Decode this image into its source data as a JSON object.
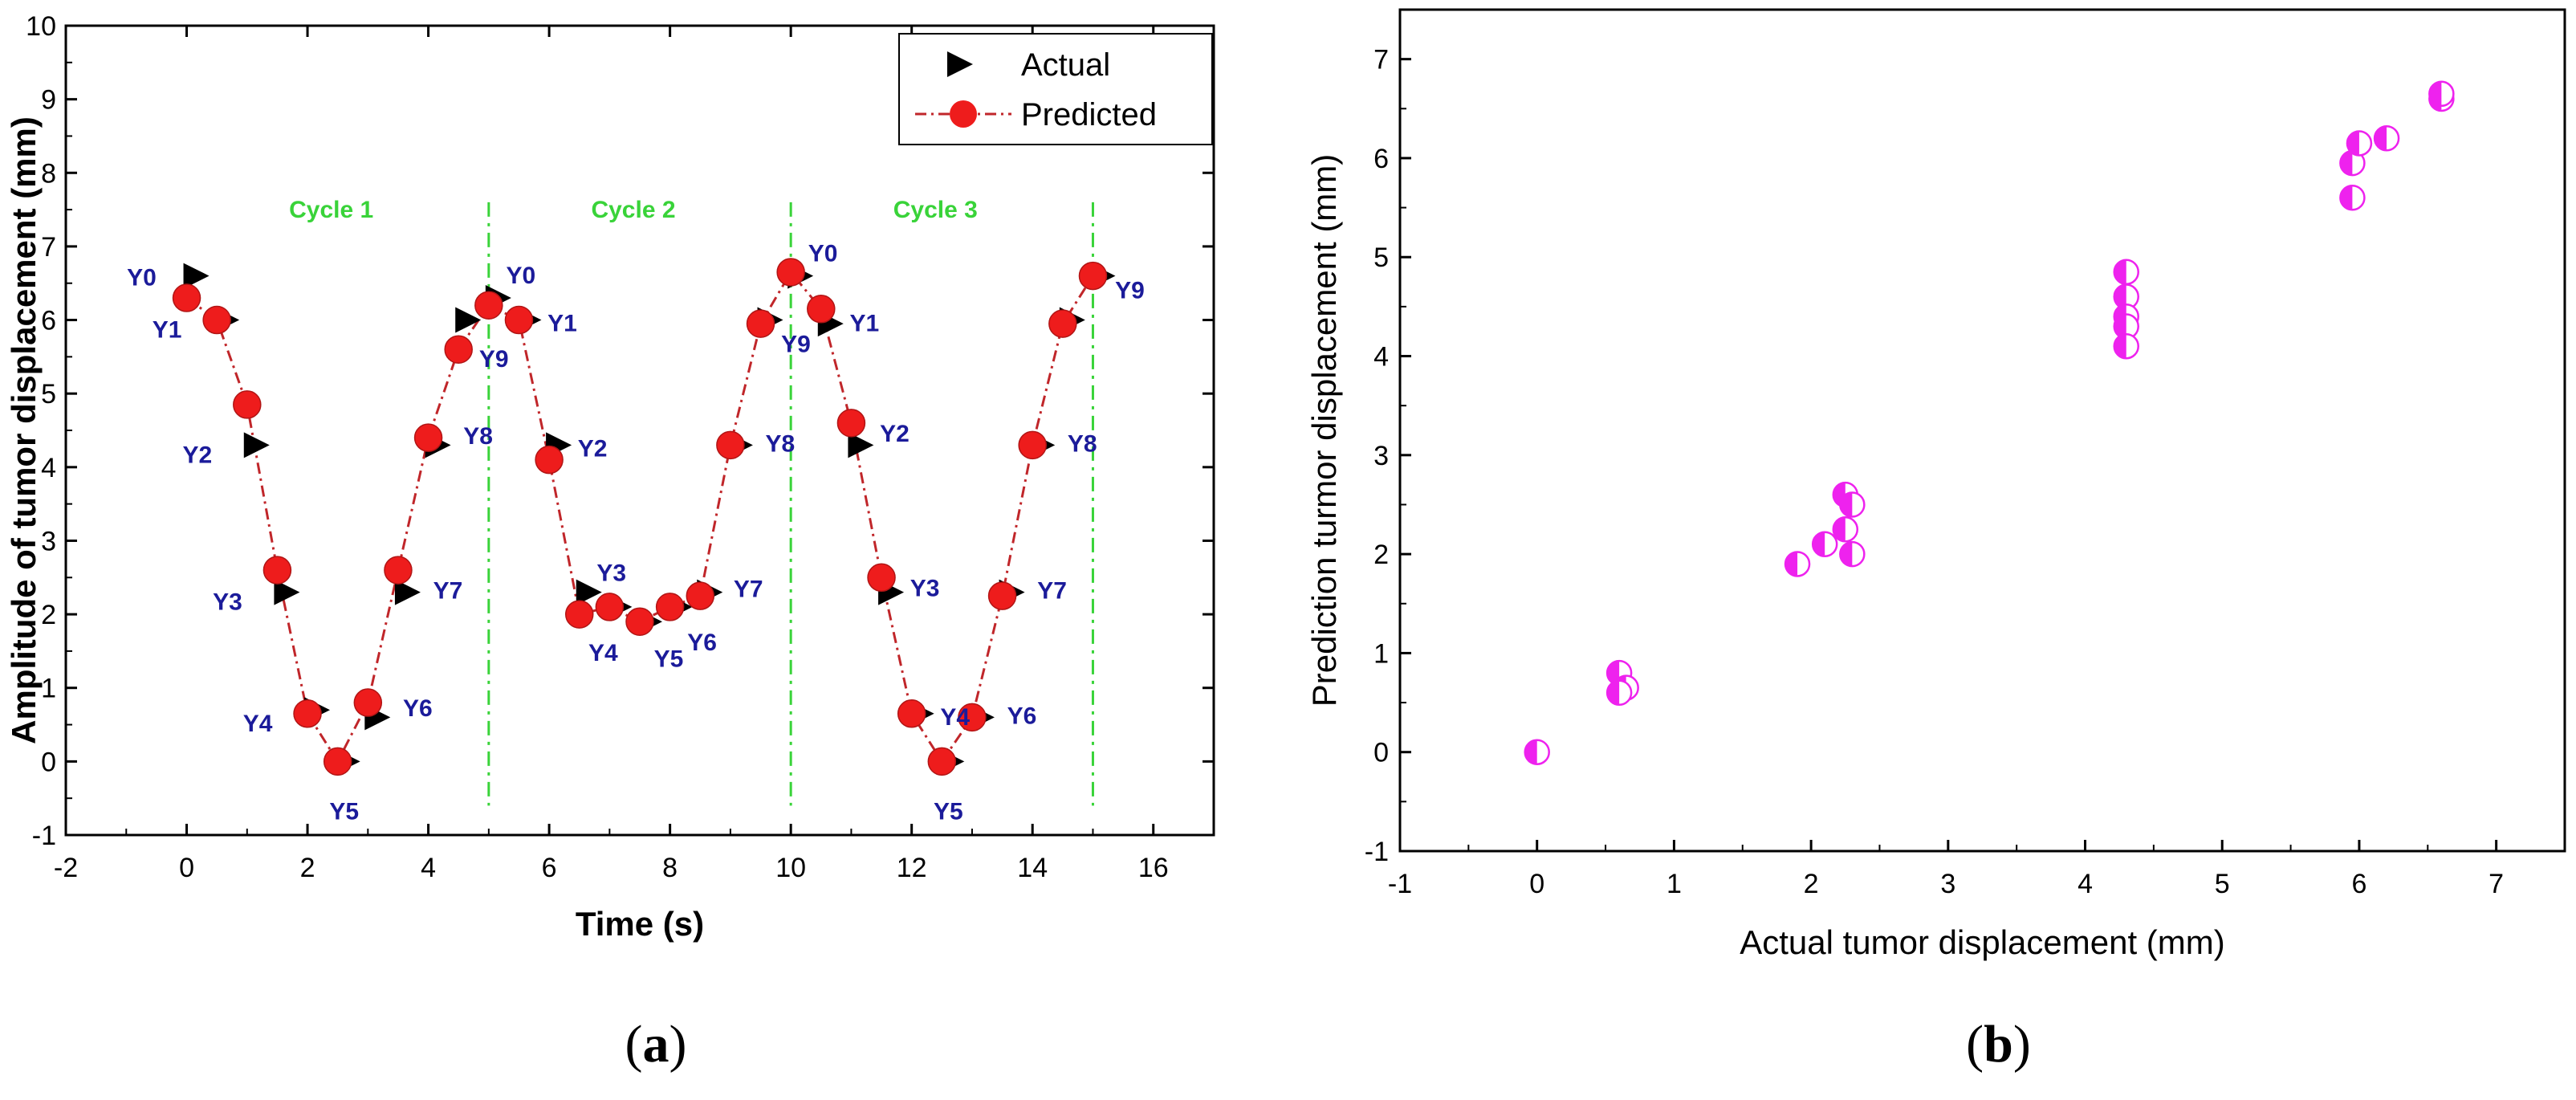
{
  "chart_data": [
    {
      "type": "line",
      "panel_label": "a",
      "xlabel": "Time (s)",
      "ylabel": "Amplitude of tumor displacement (mm)",
      "xlim": [
        -2,
        17
      ],
      "ylim": [
        -1,
        10
      ],
      "xticks": [
        -2,
        0,
        2,
        4,
        6,
        8,
        10,
        12,
        14,
        16
      ],
      "yticks": [
        -1,
        0,
        1,
        2,
        3,
        4,
        5,
        6,
        7,
        8,
        9,
        10
      ],
      "legend": {
        "placement": "top-right",
        "entries": [
          "Actual",
          "Predicted"
        ]
      },
      "series": [
        {
          "name": "Actual",
          "marker": "triangle-right",
          "color": "#000000",
          "x": [
            0,
            0.5,
            1.0,
            1.5,
            2.0,
            2.5,
            3.0,
            3.5,
            4.0,
            4.5,
            5.0,
            5.5,
            6.0,
            6.5,
            7.0,
            7.5,
            8.0,
            8.5,
            9.0,
            9.5,
            10.0,
            10.5,
            11.0,
            11.5,
            12.0,
            12.5,
            13.0,
            13.5,
            14.0,
            14.5,
            15.0
          ],
          "y": [
            6.6,
            6.0,
            4.3,
            2.3,
            0.7,
            0.0,
            0.6,
            2.3,
            4.3,
            6.0,
            6.3,
            6.0,
            4.3,
            2.3,
            2.1,
            1.9,
            2.1,
            2.3,
            4.3,
            6.0,
            6.6,
            5.95,
            4.3,
            2.3,
            0.65,
            0.0,
            0.6,
            2.3,
            4.3,
            6.0,
            6.6
          ]
        },
        {
          "name": "Predicted",
          "marker": "circle",
          "color": "#ee1c1c",
          "line": "dash-dot",
          "line_color": "#c0262a",
          "x": [
            0,
            0.5,
            1.0,
            1.5,
            2.0,
            2.5,
            3.0,
            3.5,
            4.0,
            4.5,
            5.0,
            5.5,
            6.0,
            6.5,
            7.0,
            7.5,
            8.0,
            8.5,
            9.0,
            9.5,
            10.0,
            10.5,
            11.0,
            11.5,
            12.0,
            12.5,
            13.0,
            13.5,
            14.0,
            14.5,
            15.0
          ],
          "y": [
            6.3,
            6.0,
            4.85,
            2.6,
            0.65,
            0.0,
            0.8,
            2.6,
            4.4,
            5.6,
            6.2,
            6.0,
            4.1,
            2.0,
            2.1,
            1.9,
            2.1,
            2.25,
            4.3,
            5.95,
            6.65,
            6.15,
            4.6,
            2.5,
            0.65,
            0.0,
            0.6,
            2.25,
            4.3,
            5.95,
            6.6
          ]
        }
      ],
      "point_labels": [
        {
          "text": "Y0",
          "x": 0,
          "y": 6.6
        },
        {
          "text": "Y1",
          "x": 0.5,
          "y": 6.0
        },
        {
          "text": "Y2",
          "x": 1.0,
          "y": 4.3
        },
        {
          "text": "Y3",
          "x": 1.5,
          "y": 2.3
        },
        {
          "text": "Y4",
          "x": 2.0,
          "y": 0.65
        },
        {
          "text": "Y5",
          "x": 2.5,
          "y": 0.0
        },
        {
          "text": "Y6",
          "x": 3.0,
          "y": 0.7
        },
        {
          "text": "Y7",
          "x": 3.5,
          "y": 2.3
        },
        {
          "text": "Y8",
          "x": 4.0,
          "y": 4.4
        },
        {
          "text": "Y9",
          "x": 4.5,
          "y": 5.8
        },
        {
          "text": "Y0",
          "x": 5.0,
          "y": 6.3
        },
        {
          "text": "Y1",
          "x": 5.5,
          "y": 6.0
        },
        {
          "text": "Y2",
          "x": 6.0,
          "y": 4.3
        },
        {
          "text": "Y3",
          "x": 6.5,
          "y": 2.3
        },
        {
          "text": "Y4",
          "x": 7.0,
          "y": 2.0
        },
        {
          "text": "Y5",
          "x": 7.5,
          "y": 1.9
        },
        {
          "text": "Y6",
          "x": 8.0,
          "y": 2.1
        },
        {
          "text": "Y7",
          "x": 8.5,
          "y": 2.3
        },
        {
          "text": "Y8",
          "x": 9.0,
          "y": 4.3
        },
        {
          "text": "Y9",
          "x": 9.5,
          "y": 6.0
        },
        {
          "text": "Y0",
          "x": 10.0,
          "y": 6.6
        },
        {
          "text": "Y1",
          "x": 10.5,
          "y": 6.0
        },
        {
          "text": "Y2",
          "x": 11.0,
          "y": 4.5
        },
        {
          "text": "Y3",
          "x": 11.5,
          "y": 2.4
        },
        {
          "text": "Y4",
          "x": 12.0,
          "y": 0.65
        },
        {
          "text": "Y5",
          "x": 12.5,
          "y": 0.0
        },
        {
          "text": "Y6",
          "x": 13.0,
          "y": 0.6
        },
        {
          "text": "Y7",
          "x": 13.5,
          "y": 2.3
        },
        {
          "text": "Y8",
          "x": 14.0,
          "y": 4.3
        },
        {
          "text": "Y9",
          "x": 15.0,
          "y": 6.6
        }
      ],
      "cycle_markers": [
        {
          "text": "Cycle 1",
          "label_x": 2.5,
          "line_x": null
        },
        {
          "text": "Cycle 2",
          "label_x": 7.5,
          "line_x": 5.0
        },
        {
          "text": "Cycle 3",
          "label_x": 12.5,
          "line_x": 10.0
        },
        {
          "text": "",
          "label_x": null,
          "line_x": 15.0
        }
      ],
      "cycle_label_y": 7.5,
      "cycle_line_color": "#39d339"
    },
    {
      "type": "scatter",
      "panel_label": "b",
      "xlabel": "Actual tumor displacement (mm)",
      "ylabel": "Prediction turmor displacement (mm)",
      "xlim": [
        -1,
        7.5
      ],
      "ylim": [
        -1,
        7.5
      ],
      "xticks": [
        -1,
        0,
        1,
        2,
        3,
        4,
        5,
        6,
        7
      ],
      "yticks": [
        -1,
        0,
        1,
        2,
        3,
        4,
        5,
        6,
        7
      ],
      "marker": "half-filled-circle",
      "color": "#ee22ee",
      "points": [
        [
          0.0,
          0.0
        ],
        [
          0.6,
          0.8
        ],
        [
          0.65,
          0.65
        ],
        [
          0.6,
          0.6
        ],
        [
          1.9,
          1.9
        ],
        [
          2.1,
          2.1
        ],
        [
          2.25,
          2.25
        ],
        [
          2.25,
          2.6
        ],
        [
          2.3,
          2.5
        ],
        [
          2.3,
          2.0
        ],
        [
          4.3,
          4.85
        ],
        [
          4.3,
          4.6
        ],
        [
          4.3,
          4.4
        ],
        [
          4.3,
          4.3
        ],
        [
          4.3,
          4.1
        ],
        [
          5.95,
          5.6
        ],
        [
          5.95,
          5.95
        ],
        [
          6.0,
          6.15
        ],
        [
          6.2,
          6.2
        ],
        [
          6.6,
          6.6
        ],
        [
          6.6,
          6.65
        ]
      ]
    }
  ]
}
